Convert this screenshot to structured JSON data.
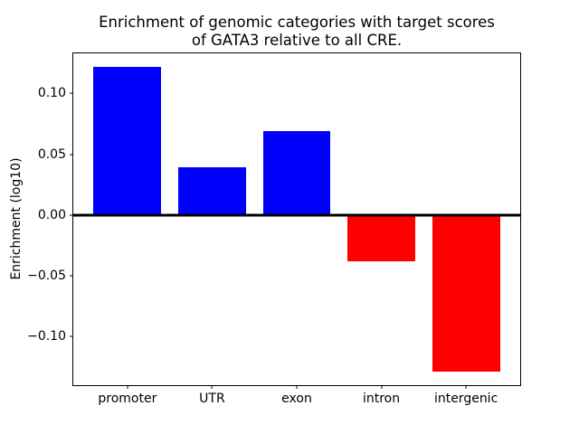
{
  "figure": {
    "background": "#ffffff"
  },
  "chart_data": {
    "type": "bar",
    "title": "Enrichment of genomic categories with target scores\nof GATA3 relative to all CRE.",
    "title_lines": [
      "Enrichment of genomic categories with target scores",
      "of GATA3 relative to all CRE."
    ],
    "xlabel": "",
    "ylabel": "Enrichment (log10)",
    "categories": [
      "promoter",
      "UTR",
      "exon",
      "intron",
      "intergenic"
    ],
    "values": [
      0.122,
      0.039,
      0.069,
      -0.038,
      -0.129
    ],
    "bar_width": 0.8,
    "positive_color": "#0000ff",
    "negative_color": "#ff0000",
    "axis_color": "#000000",
    "zero_line": true,
    "grid": false,
    "legend": null,
    "xlim": [
      -0.64,
      4.64
    ],
    "ylim": [
      -0.1401,
      0.133
    ],
    "yticks": [
      0.1,
      0.05,
      0.0,
      -0.05,
      -0.1
    ],
    "ytick_labels": [
      "0.10",
      "0.05",
      "0.00",
      "−0.05",
      "−0.10"
    ]
  }
}
